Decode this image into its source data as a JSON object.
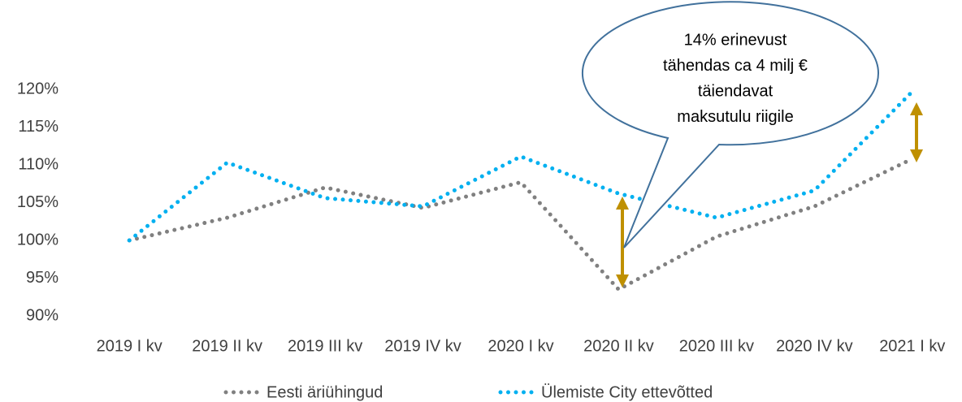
{
  "chart_data": {
    "type": "line",
    "categories": [
      "2019 I kv",
      "2019 II kv",
      "2019 III kv",
      "2019 IV kv",
      "2020 I kv",
      "2020 II kv",
      "2020 III kv",
      "2020 IV kv",
      "2021 I kv"
    ],
    "series": [
      {
        "name": "Eesti äriühingud",
        "color": "#808080",
        "values": [
          100,
          103,
          107,
          104.3,
          107.7,
          93.5,
          100.5,
          104.5,
          110.8
        ]
      },
      {
        "name": "Ülemiste City ettevõtted",
        "color": "#00b0f0",
        "values": [
          100,
          110.3,
          105.6,
          104.5,
          111.1,
          106.2,
          103,
          106.6,
          119.7
        ]
      }
    ],
    "ylim": [
      90,
      120
    ],
    "yticks": [
      {
        "value": 90,
        "label": "90%"
      },
      {
        "value": 95,
        "label": "95%"
      },
      {
        "value": 100,
        "label": "100%"
      },
      {
        "value": 105,
        "label": "105%"
      },
      {
        "value": 110,
        "label": "110%"
      },
      {
        "value": 115,
        "label": "115%"
      },
      {
        "value": 120,
        "label": "120%"
      }
    ],
    "annotation": [
      "14% erinevust",
      "tähendas ca 4 milj €",
      "täiendavat",
      "maksutulu riigile"
    ],
    "legend": "bottom"
  }
}
